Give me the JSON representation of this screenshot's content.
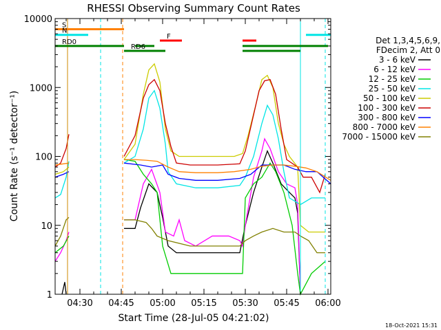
{
  "chart_data": {
    "type": "line",
    "title": "RHESSI Observing Summary Count Rates",
    "xlabel": "Start Time (28-Jul-05 04:21:02)",
    "ylabel": "Count Rate (s⁻¹ detector⁻¹)",
    "yscale": "log",
    "ylim": [
      1,
      10000
    ],
    "xlim_minutes_after_0400": [
      21,
      121
    ],
    "x_ticks": [
      {
        "t": 30,
        "label": "04:30"
      },
      {
        "t": 45,
        "label": "04:45"
      },
      {
        "t": 60,
        "label": "05:00"
      },
      {
        "t": 75,
        "label": "05:15"
      },
      {
        "t": 90,
        "label": "05:30"
      },
      {
        "t": 105,
        "label": "05:45"
      },
      {
        "t": 120,
        "label": "06:00"
      }
    ],
    "y_ticks": [
      {
        "v": 1,
        "label": "1"
      },
      {
        "v": 10,
        "label": "10"
      },
      {
        "v": 100,
        "label": "100"
      },
      {
        "v": 1000,
        "label": "1000"
      },
      {
        "v": 10000,
        "label": "10000"
      }
    ],
    "legend": {
      "placement": "right",
      "header": [
        "Det 1,3,4,5,6,9,",
        "FDecim 2, Att 0"
      ],
      "entries": [
        {
          "name": "3 - 6 keV",
          "color": "#000000"
        },
        {
          "name": "6 - 12 keV",
          "color": "#ff00ff"
        },
        {
          "name": "12 - 25 keV",
          "color": "#00cc00"
        },
        {
          "name": "25 - 50 keV",
          "color": "#00e5e5"
        },
        {
          "name": "50 - 100 keV",
          "color": "#cccc00"
        },
        {
          "name": "100 - 300 keV",
          "color": "#cc0000"
        },
        {
          "name": "300 - 800 keV",
          "color": "#0000ff"
        },
        {
          "name": "800 - 7000 keV",
          "color": "#ff8000"
        },
        {
          "name": "7000 - 15000 keV",
          "color": "#808000"
        }
      ]
    },
    "flag_bars": [
      {
        "label": "S",
        "color": "#ff8000",
        "value": 7000,
        "segments": [
          [
            21,
            46
          ]
        ]
      },
      {
        "label": "N",
        "color": "#00e5e5",
        "value": 5800,
        "segments": [
          [
            21,
            33
          ],
          [
            112,
            121
          ]
        ]
      },
      {
        "label": "F",
        "color": "#ff0000",
        "value": 4800,
        "segments": [
          [
            59,
            67
          ],
          [
            89,
            94
          ]
        ]
      },
      {
        "label": "RD0",
        "color": "#008000",
        "value": 4000,
        "segments": [
          [
            21,
            46
          ],
          [
            50,
            57
          ],
          [
            89,
            120
          ]
        ]
      },
      {
        "label": "RD6",
        "color": "#008000",
        "value": 3400,
        "segments": [
          [
            46,
            61
          ],
          [
            89,
            110
          ]
        ]
      }
    ],
    "vlines": [
      {
        "t": 25.5,
        "color": "#cc8800",
        "style": "solid"
      },
      {
        "t": 45.5,
        "color": "#ff8000",
        "style": "dashed"
      },
      {
        "t": 37.5,
        "color": "#00e5e5",
        "style": "dashed"
      },
      {
        "t": 110,
        "color": "#00e5e5",
        "style": "solid"
      },
      {
        "t": 119,
        "color": "#00e5e5",
        "style": "dashed"
      }
    ],
    "series": [
      {
        "name": "3 - 6 keV",
        "color": "#000000",
        "segments": [
          [
            [
              23.5,
              1
            ],
            [
              24.5,
              1.5
            ],
            [
              25,
              1
            ]
          ],
          [
            [
              46,
              9
            ],
            [
              50,
              9
            ],
            [
              52,
              18
            ],
            [
              55,
              40
            ],
            [
              58,
              30
            ],
            [
              60,
              13
            ],
            [
              62,
              5
            ],
            [
              65,
              4
            ],
            [
              70,
              4
            ],
            [
              80,
              4
            ],
            [
              88,
              4
            ],
            [
              90,
              10
            ],
            [
              93,
              30
            ],
            [
              96,
              70
            ],
            [
              98,
              120
            ],
            [
              100,
              80
            ],
            [
              103,
              40
            ],
            [
              106,
              30
            ],
            [
              108,
              25
            ],
            [
              109,
              15
            ],
            [
              110,
              1
            ]
          ]
        ]
      },
      {
        "name": "6 - 12 keV",
        "color": "#ff00ff",
        "segments": [
          [
            [
              21,
              3
            ],
            [
              23,
              4
            ],
            [
              25,
              6
            ],
            [
              26,
              8
            ]
          ],
          [
            [
              46,
              12
            ],
            [
              50,
              12
            ],
            [
              53,
              40
            ],
            [
              56,
              65
            ],
            [
              59,
              30
            ],
            [
              61,
              8
            ],
            [
              64,
              7
            ],
            [
              66,
              12
            ],
            [
              68,
              6
            ],
            [
              72,
              5
            ],
            [
              78,
              7
            ],
            [
              84,
              7
            ],
            [
              88,
              6
            ],
            [
              89,
              5
            ],
            [
              90,
              10
            ],
            [
              93,
              50
            ],
            [
              96,
              120
            ],
            [
              97,
              180
            ],
            [
              99,
              130
            ],
            [
              102,
              60
            ],
            [
              105,
              40
            ],
            [
              108,
              35
            ],
            [
              109,
              20
            ],
            [
              110,
              1
            ]
          ]
        ]
      },
      {
        "name": "12 - 25 keV",
        "color": "#00cc00",
        "segments": [
          [
            [
              21,
              4
            ],
            [
              24,
              5
            ],
            [
              26,
              7
            ]
          ],
          [
            [
              46,
              90
            ],
            [
              50,
              85
            ],
            [
              53,
              55
            ],
            [
              56,
              40
            ],
            [
              58,
              30
            ],
            [
              60,
              5
            ],
            [
              63,
              2
            ],
            [
              70,
              2
            ],
            [
              80,
              2
            ],
            [
              89,
              2
            ],
            [
              90,
              25
            ],
            [
              93,
              40
            ],
            [
              96,
              50
            ],
            [
              99,
              80
            ],
            [
              101,
              60
            ],
            [
              104,
              30
            ],
            [
              107,
              10
            ],
            [
              109,
              2
            ],
            [
              110,
              1
            ],
            [
              114,
              2
            ],
            [
              119,
              3
            ]
          ]
        ]
      },
      {
        "name": "25 - 50 keV",
        "color": "#00e5e5",
        "segments": [
          [
            [
              21,
              25
            ],
            [
              23,
              28
            ],
            [
              25,
              50
            ],
            [
              26,
              85
            ]
          ],
          [
            [
              46,
              80
            ],
            [
              50,
              100
            ],
            [
              53,
              250
            ],
            [
              55,
              700
            ],
            [
              57,
              900
            ],
            [
              59,
              500
            ],
            [
              61,
              150
            ],
            [
              62,
              60
            ],
            [
              65,
              40
            ],
            [
              72,
              35
            ],
            [
              80,
              35
            ],
            [
              88,
              38
            ],
            [
              90,
              50
            ],
            [
              93,
              100
            ],
            [
              96,
              300
            ],
            [
              98,
              550
            ],
            [
              100,
              400
            ],
            [
              102,
              180
            ],
            [
              104,
              60
            ],
            [
              106,
              25
            ],
            [
              110,
              20
            ],
            [
              114,
              25
            ],
            [
              119,
              25
            ]
          ]
        ]
      },
      {
        "name": "50 - 100 keV",
        "color": "#cccc00",
        "segments": [
          [
            [
              21,
              55
            ],
            [
              24,
              60
            ],
            [
              26,
              70
            ]
          ],
          [
            [
              46,
              90
            ],
            [
              50,
              150
            ],
            [
              53,
              800
            ],
            [
              55,
              1800
            ],
            [
              57,
              2200
            ],
            [
              59,
              1200
            ],
            [
              61,
              250
            ],
            [
              63,
              120
            ],
            [
              66,
              100
            ],
            [
              75,
              100
            ],
            [
              86,
              100
            ],
            [
              89,
              110
            ],
            [
              91,
              200
            ],
            [
              94,
              600
            ],
            [
              96,
              1300
            ],
            [
              98,
              1500
            ],
            [
              100,
              1000
            ],
            [
              102,
              300
            ],
            [
              104,
              150
            ],
            [
              106,
              100
            ],
            [
              109,
              70
            ],
            [
              110,
              10
            ],
            [
              113,
              8
            ],
            [
              119,
              8
            ]
          ]
        ]
      },
      {
        "name": "100 - 300 keV",
        "color": "#cc0000",
        "segments": [
          [
            [
              21,
              70
            ],
            [
              23,
              80
            ],
            [
              25,
              130
            ],
            [
              26,
              210
            ]
          ],
          [
            [
              46,
              100
            ],
            [
              50,
              200
            ],
            [
              53,
              700
            ],
            [
              55,
              1100
            ],
            [
              57,
              1300
            ],
            [
              59,
              900
            ],
            [
              61,
              300
            ],
            [
              63,
              140
            ],
            [
              65,
              80
            ],
            [
              70,
              75
            ],
            [
              80,
              75
            ],
            [
              88,
              78
            ],
            [
              90,
              120
            ],
            [
              93,
              400
            ],
            [
              95,
              900
            ],
            [
              97,
              1250
            ],
            [
              99,
              1300
            ],
            [
              101,
              800
            ],
            [
              103,
              250
            ],
            [
              105,
              90
            ],
            [
              109,
              70
            ],
            [
              111,
              50
            ],
            [
              114,
              50
            ],
            [
              117,
              30
            ],
            [
              119,
              55
            ]
          ]
        ]
      },
      {
        "name": "300 - 800 keV",
        "color": "#0000ff",
        "segments": [
          [
            [
              21,
              50
            ],
            [
              24,
              55
            ],
            [
              26,
              60
            ]
          ],
          [
            [
              46,
              80
            ],
            [
              52,
              75
            ],
            [
              56,
              70
            ],
            [
              60,
              75
            ],
            [
              62,
              55
            ],
            [
              66,
              48
            ],
            [
              72,
              45
            ],
            [
              80,
              45
            ],
            [
              88,
              48
            ],
            [
              92,
              55
            ],
            [
              96,
              75
            ],
            [
              100,
              75
            ],
            [
              104,
              75
            ],
            [
              108,
              65
            ],
            [
              112,
              60
            ],
            [
              116,
              60
            ],
            [
              121,
              40
            ]
          ]
        ]
      },
      {
        "name": "800 - 7000 keV",
        "color": "#ff8000",
        "segments": [
          [
            [
              21,
              75
            ],
            [
              24,
              78
            ],
            [
              26,
              80
            ]
          ],
          [
            [
              46,
              90
            ],
            [
              50,
              90
            ],
            [
              54,
              88
            ],
            [
              58,
              85
            ],
            [
              62,
              70
            ],
            [
              66,
              60
            ],
            [
              72,
              58
            ],
            [
              80,
              58
            ],
            [
              86,
              60
            ],
            [
              92,
              65
            ],
            [
              96,
              72
            ],
            [
              100,
              75
            ],
            [
              104,
              75
            ],
            [
              108,
              72
            ],
            [
              112,
              68
            ],
            [
              116,
              60
            ],
            [
              121,
              45
            ]
          ]
        ]
      },
      {
        "name": "7000 - 15000 keV",
        "color": "#808000",
        "segments": [
          [
            [
              21,
              5
            ],
            [
              23,
              7
            ],
            [
              25,
              12
            ],
            [
              26,
              13
            ]
          ],
          [
            [
              46,
              12
            ],
            [
              50,
              12
            ],
            [
              54,
              11
            ],
            [
              56,
              9
            ],
            [
              58,
              7
            ],
            [
              62,
              6
            ],
            [
              70,
              5
            ],
            [
              80,
              5
            ],
            [
              88,
              5
            ],
            [
              90,
              6
            ],
            [
              93,
              7
            ],
            [
              96,
              8
            ],
            [
              100,
              9
            ],
            [
              104,
              8
            ],
            [
              108,
              8
            ],
            [
              110,
              7
            ],
            [
              113,
              6
            ],
            [
              116,
              4
            ],
            [
              119,
              4
            ]
          ]
        ]
      }
    ]
  },
  "timestamp": "18-Oct-2021 15:31"
}
